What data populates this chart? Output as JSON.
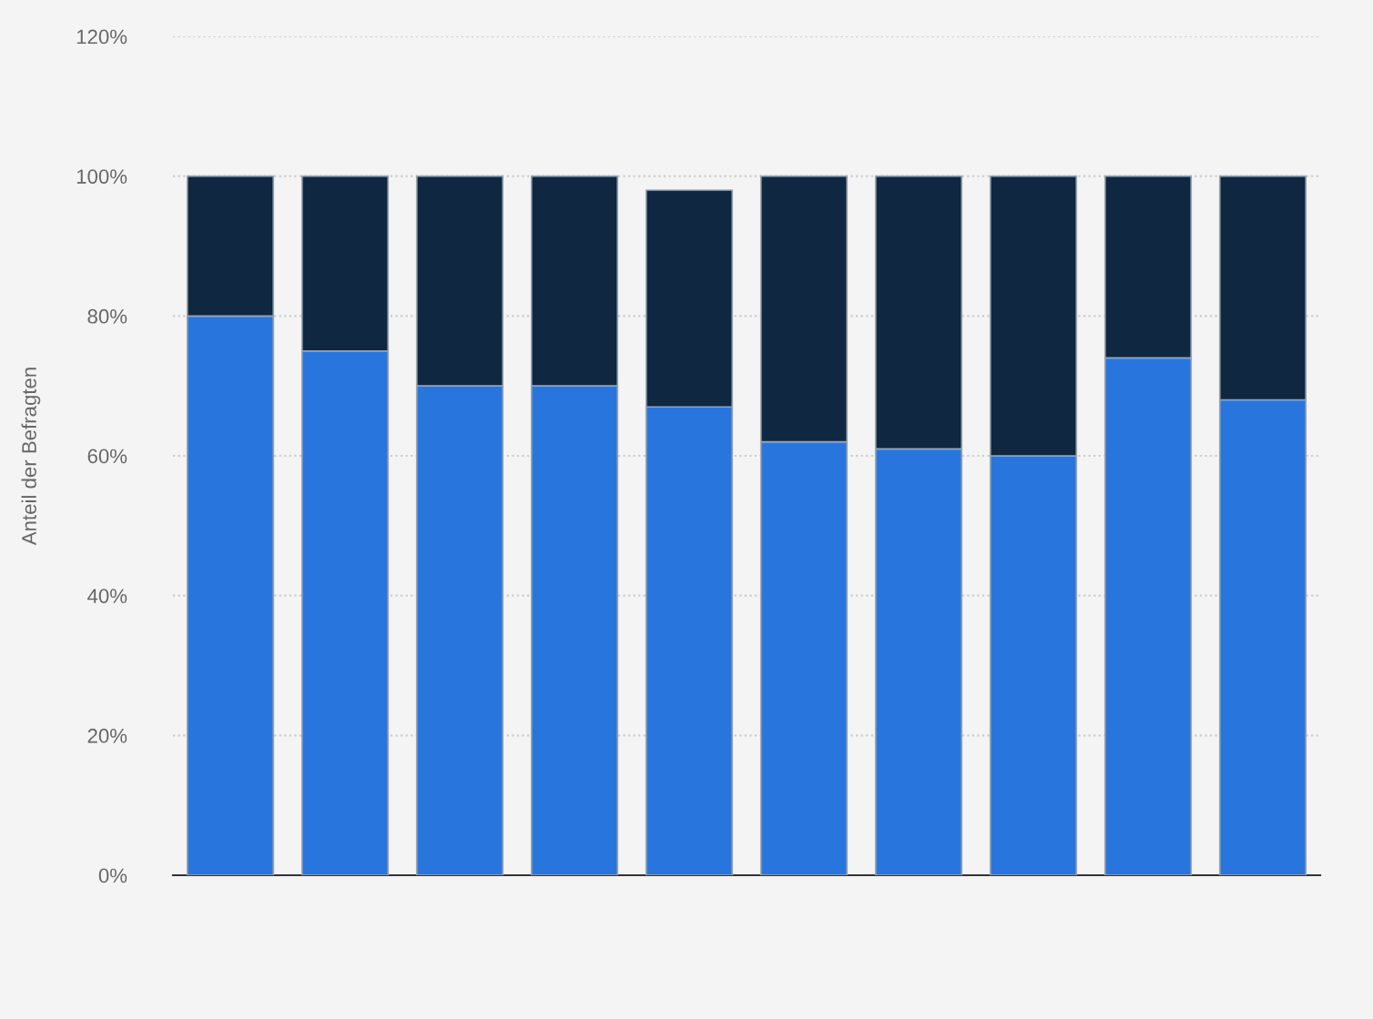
{
  "chart_data": {
    "type": "bar",
    "ylabel": "Anteil der Befragten",
    "stacked": true,
    "categories": [
      null,
      null,
      null,
      null,
      null,
      null,
      null,
      null,
      null,
      null
    ],
    "series": [
      {
        "color": "#2876dd",
        "values": [
          80,
          75,
          70,
          70,
          67,
          62,
          61,
          60,
          74,
          68
        ]
      },
      {
        "color": "#0f2740",
        "values": [
          20,
          25,
          30,
          30,
          31,
          38,
          39,
          40,
          26,
          32
        ]
      }
    ],
    "ylim": [
      0,
      120
    ],
    "yticks": [
      {
        "value": 0,
        "label": "0%"
      },
      {
        "value": 20,
        "label": "20%"
      },
      {
        "value": 40,
        "label": "40%"
      },
      {
        "value": 60,
        "label": "60%"
      },
      {
        "value": 80,
        "label": "80%"
      },
      {
        "value": 100,
        "label": "100%"
      },
      {
        "value": 120,
        "label": "120%"
      }
    ],
    "grid": "y"
  }
}
